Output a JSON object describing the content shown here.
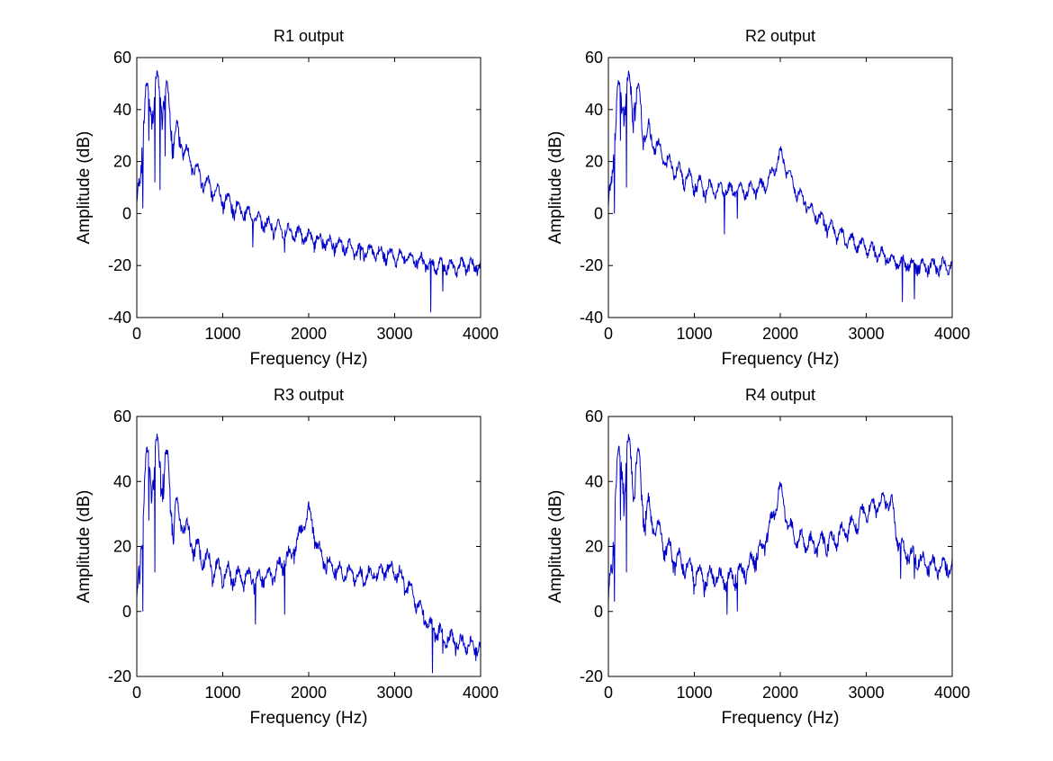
{
  "colors": {
    "line": "#0000cc",
    "axes": "#000000",
    "background": "#ffffff"
  },
  "chart_data": [
    {
      "type": "line",
      "title": "R1 output",
      "xlabel": "Frequency (Hz)",
      "ylabel": "Amplitude (dB)",
      "xlim": [
        0,
        4000
      ],
      "ylim": [
        -40,
        60
      ],
      "xticks": [
        0,
        1000,
        2000,
        3000,
        4000
      ],
      "yticks": [
        -40,
        -20,
        0,
        20,
        40,
        60
      ],
      "grid": false,
      "envelope": {
        "x": [
          0,
          60,
          100,
          150,
          200,
          260,
          330,
          400,
          500,
          600,
          700,
          800,
          900,
          1000,
          1200,
          1400,
          1600,
          1800,
          2000,
          2200,
          2400,
          2600,
          2800,
          3000,
          3200,
          3400,
          3600,
          3800,
          4000
        ],
        "y": [
          4,
          38,
          49,
          52,
          53,
          54,
          53,
          43,
          32,
          25,
          19,
          15,
          12,
          9,
          4,
          0,
          -3,
          -5,
          -7,
          -9,
          -10,
          -12,
          -13,
          -14,
          -15,
          -17,
          -18,
          -18,
          -18
        ]
      },
      "dips": [
        [
          70,
          2
        ],
        [
          140,
          28
        ],
        [
          210,
          12
        ],
        [
          270,
          9
        ],
        [
          330,
          22
        ],
        [
          1350,
          -13
        ],
        [
          1720,
          -15
        ],
        [
          2600,
          -18
        ],
        [
          3420,
          -38
        ],
        [
          3560,
          -30
        ]
      ]
    },
    {
      "type": "line",
      "title": "R2 output",
      "xlabel": "Frequency (Hz)",
      "ylabel": "Amplitude (dB)",
      "xlim": [
        0,
        4000
      ],
      "ylim": [
        -40,
        60
      ],
      "xticks": [
        0,
        1000,
        2000,
        3000,
        4000
      ],
      "yticks": [
        -40,
        -20,
        0,
        20,
        40,
        60
      ],
      "grid": false,
      "envelope": {
        "x": [
          0,
          60,
          100,
          150,
          200,
          260,
          330,
          400,
          500,
          600,
          700,
          800,
          900,
          1000,
          1100,
          1200,
          1400,
          1600,
          1800,
          1900,
          2000,
          2050,
          2100,
          2200,
          2400,
          2600,
          2800,
          3000,
          3200,
          3400,
          3600,
          3800,
          4000
        ],
        "y": [
          4,
          38,
          49,
          52,
          53,
          54,
          53,
          43,
          32,
          27,
          22,
          19,
          17,
          15,
          13,
          12,
          11,
          11,
          13,
          17,
          25,
          22,
          17,
          10,
          2,
          -4,
          -8,
          -11,
          -14,
          -17,
          -18,
          -18,
          -18
        ]
      },
      "dips": [
        [
          70,
          0
        ],
        [
          140,
          28
        ],
        [
          210,
          10
        ],
        [
          1350,
          -8
        ],
        [
          1500,
          -2
        ],
        [
          3420,
          -34
        ],
        [
          3560,
          -33
        ]
      ]
    },
    {
      "type": "line",
      "title": "R3 output",
      "xlabel": "Frequency (Hz)",
      "ylabel": "Amplitude (dB)",
      "xlim": [
        0,
        4000
      ],
      "ylim": [
        -20,
        60
      ],
      "xticks": [
        0,
        1000,
        2000,
        3000,
        4000
      ],
      "yticks": [
        -20,
        0,
        20,
        40,
        60
      ],
      "grid": false,
      "envelope": {
        "x": [
          0,
          60,
          100,
          150,
          200,
          260,
          330,
          400,
          500,
          600,
          700,
          800,
          900,
          1000,
          1200,
          1400,
          1600,
          1800,
          1900,
          2000,
          2050,
          2100,
          2200,
          2400,
          2600,
          2800,
          2900,
          3000,
          3100,
          3200,
          3300,
          3400,
          3600,
          3800,
          4000
        ],
        "y": [
          4,
          38,
          49,
          52,
          53,
          54,
          53,
          43,
          32,
          27,
          22,
          19,
          17,
          15,
          13,
          12,
          14,
          20,
          26,
          33,
          29,
          22,
          17,
          14,
          13,
          14,
          15,
          15,
          12,
          8,
          3,
          -2,
          -6,
          -8,
          -9
        ]
      },
      "dips": [
        [
          70,
          0
        ],
        [
          140,
          28
        ],
        [
          210,
          12
        ],
        [
          1380,
          -4
        ],
        [
          1720,
          -1
        ],
        [
          3440,
          -19
        ],
        [
          3560,
          -13
        ]
      ]
    },
    {
      "type": "line",
      "title": "R4 output",
      "xlabel": "Frequency (Hz)",
      "ylabel": "Amplitude (dB)",
      "xlim": [
        0,
        4000
      ],
      "ylim": [
        -20,
        60
      ],
      "xticks": [
        0,
        1000,
        2000,
        3000,
        4000
      ],
      "yticks": [
        -20,
        0,
        20,
        40,
        60
      ],
      "grid": false,
      "envelope": {
        "x": [
          0,
          60,
          100,
          150,
          200,
          260,
          330,
          400,
          500,
          600,
          700,
          800,
          900,
          1000,
          1200,
          1400,
          1600,
          1800,
          1900,
          2000,
          2050,
          2100,
          2200,
          2400,
          2600,
          2800,
          3000,
          3200,
          3300,
          3350,
          3400,
          3600,
          3800,
          4000
        ],
        "y": [
          4,
          38,
          49,
          52,
          53,
          54,
          53,
          43,
          32,
          27,
          22,
          19,
          17,
          15,
          13,
          12,
          15,
          22,
          30,
          40,
          35,
          28,
          25,
          23,
          24,
          28,
          33,
          36,
          35,
          26,
          22,
          18,
          16,
          16
        ]
      },
      "dips": [
        [
          70,
          3
        ],
        [
          140,
          28
        ],
        [
          210,
          12
        ],
        [
          1380,
          -1
        ],
        [
          1500,
          0
        ],
        [
          3400,
          10
        ],
        [
          3560,
          10
        ]
      ]
    }
  ]
}
